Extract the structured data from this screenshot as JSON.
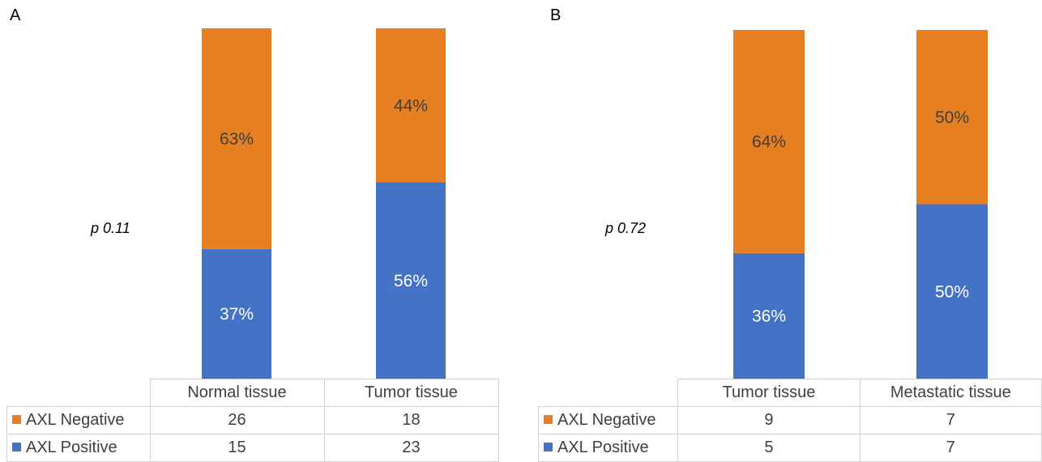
{
  "chart_data": [
    {
      "type": "bar",
      "stacked": true,
      "normalized": true,
      "panel_label": "A",
      "annotation": "p 0.11",
      "categories": [
        "Normal tissue",
        "Tumor tissue"
      ],
      "series": [
        {
          "name": "AXL Positive",
          "color": "#4472C4",
          "values": [
            37,
            56
          ],
          "labels": [
            "37%",
            "56%"
          ],
          "counts": [
            "15",
            "23"
          ]
        },
        {
          "name": "AXL Negative",
          "color": "#E67E22",
          "values": [
            63,
            44
          ],
          "labels": [
            "63%",
            "44%"
          ],
          "counts": [
            "26",
            "18"
          ]
        }
      ],
      "ylim": [
        0,
        100
      ]
    },
    {
      "type": "bar",
      "stacked": true,
      "normalized": true,
      "panel_label": "B",
      "annotation": "p 0.72",
      "categories": [
        "Tumor tissue",
        "Metastatic tissue"
      ],
      "series": [
        {
          "name": "AXL Positive",
          "color": "#4472C4",
          "values": [
            36,
            50
          ],
          "labels": [
            "36%",
            "50%"
          ],
          "counts": [
            "5",
            "7"
          ]
        },
        {
          "name": "AXL Negative",
          "color": "#E67E22",
          "values": [
            64,
            50
          ],
          "labels": [
            "64%",
            "50%"
          ],
          "counts": [
            "9",
            "7"
          ]
        }
      ],
      "ylim": [
        0,
        100
      ]
    }
  ]
}
